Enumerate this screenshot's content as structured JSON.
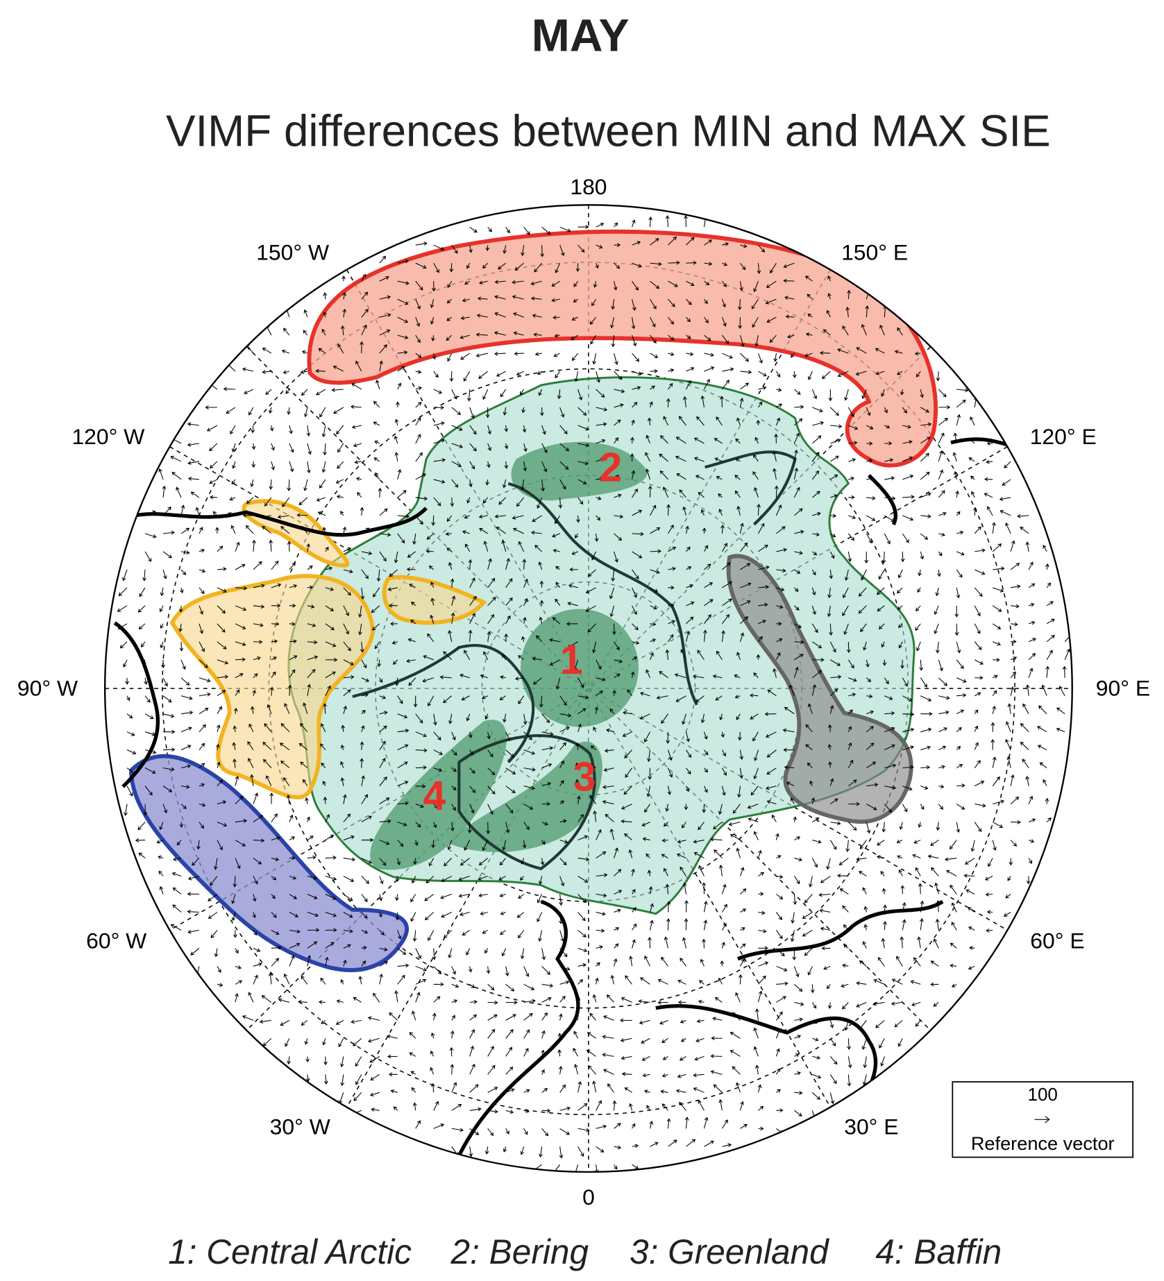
{
  "title": "MAY",
  "subtitle": "VIMF differences between MIN and MAX SIE",
  "longitude_labels": {
    "top": "180",
    "upper_left": "150° W",
    "upper_right": "150° E",
    "left_high": "120° W",
    "right_high": "120° E",
    "left": "90° W",
    "right": "90° E",
    "left_low": "60° W",
    "right_low": "60° E",
    "lower_left": "30° W",
    "lower_right": "30° E",
    "bottom": "0"
  },
  "region_numbers": [
    "1",
    "2",
    "3",
    "4"
  ],
  "legend": [
    "1: Central Arctic",
    "2: Bering",
    "3: Greenland",
    "4: Baffin"
  ],
  "reference_vector": {
    "value": "100",
    "label": "Reference vector"
  }
}
